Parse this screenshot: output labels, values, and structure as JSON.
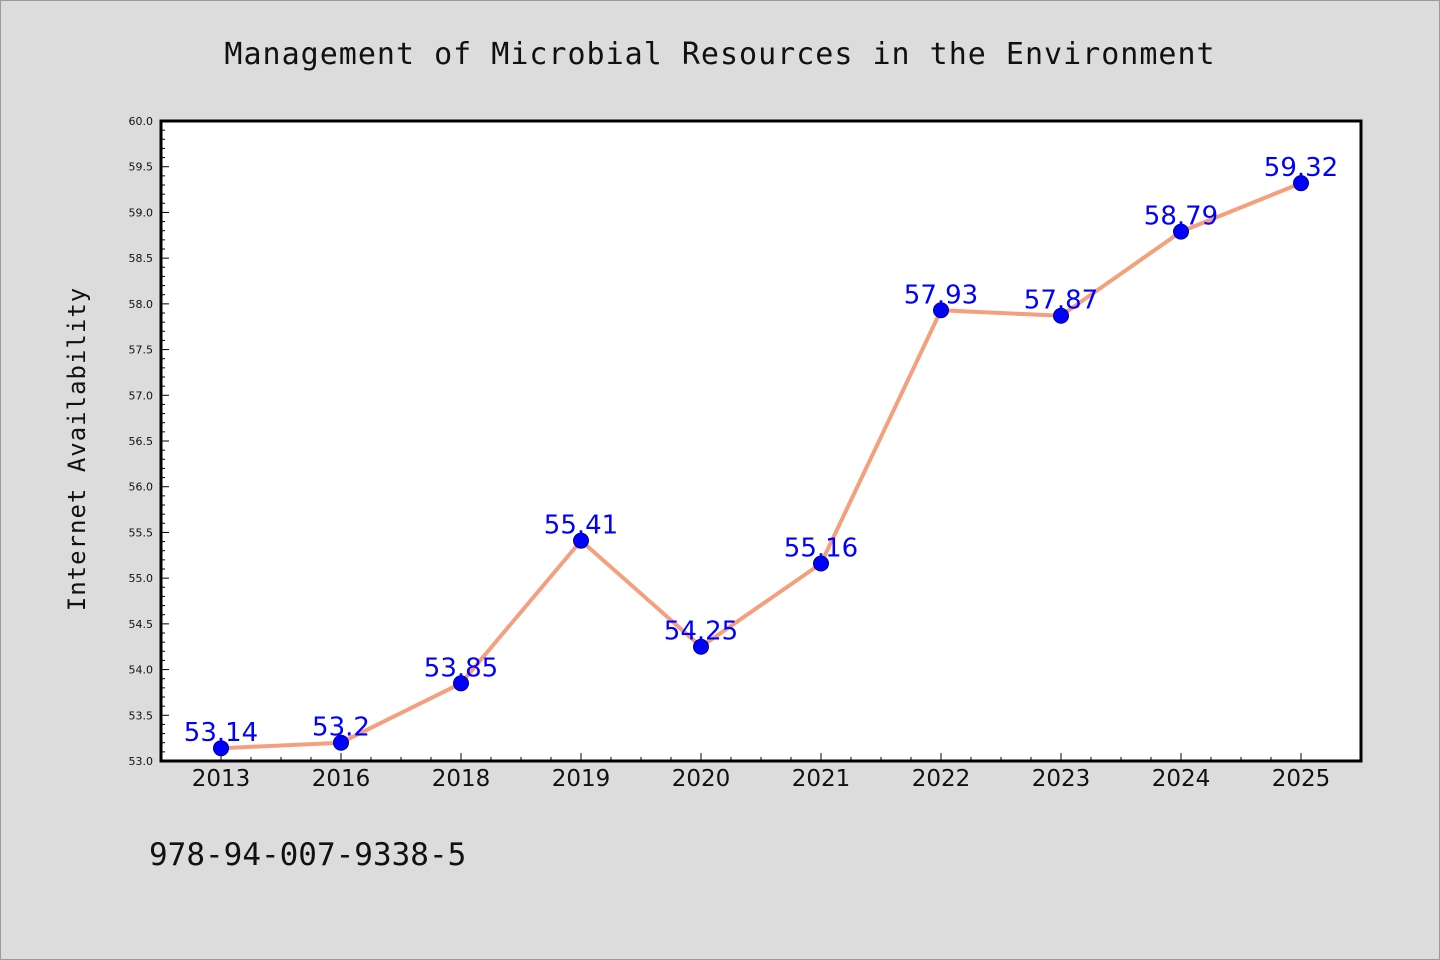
{
  "chart_data": {
    "type": "line",
    "title": "Management of Microbial Resources in the Environment",
    "xlabel": "",
    "ylabel": "Internet Availability",
    "categories": [
      "2013",
      "2016",
      "2018",
      "2019",
      "2020",
      "2021",
      "2022",
      "2023",
      "2024",
      "2025"
    ],
    "series": [
      {
        "values": [
          53.14,
          53.2,
          53.85,
          55.41,
          54.25,
          55.16,
          57.93,
          57.87,
          58.79,
          59.32
        ],
        "line_color": "#f4a07e",
        "marker_color": "#0000ff"
      }
    ],
    "data_labels": [
      "53.14",
      "53.2",
      "53.85",
      "55.41",
      "54.25",
      "55.16",
      "57.93",
      "57.87",
      "58.79",
      "59.32"
    ],
    "yticks": [
      "53.0",
      "53.5",
      "54.0",
      "54.5",
      "55.0",
      "55.5",
      "56.0",
      "56.5",
      "57.0",
      "57.5",
      "58.0",
      "58.5",
      "59.0",
      "59.5",
      "60.0"
    ],
    "ylim": [
      53.0,
      60.0
    ],
    "grid": false,
    "legend": "none"
  },
  "annotation": "978-94-007-9338-5",
  "colors": {
    "background": "#dcdcdc",
    "plot_background": "#ffffff",
    "line": "#f4a07e",
    "marker": "#0000ff",
    "data_label": "#0000ff"
  }
}
